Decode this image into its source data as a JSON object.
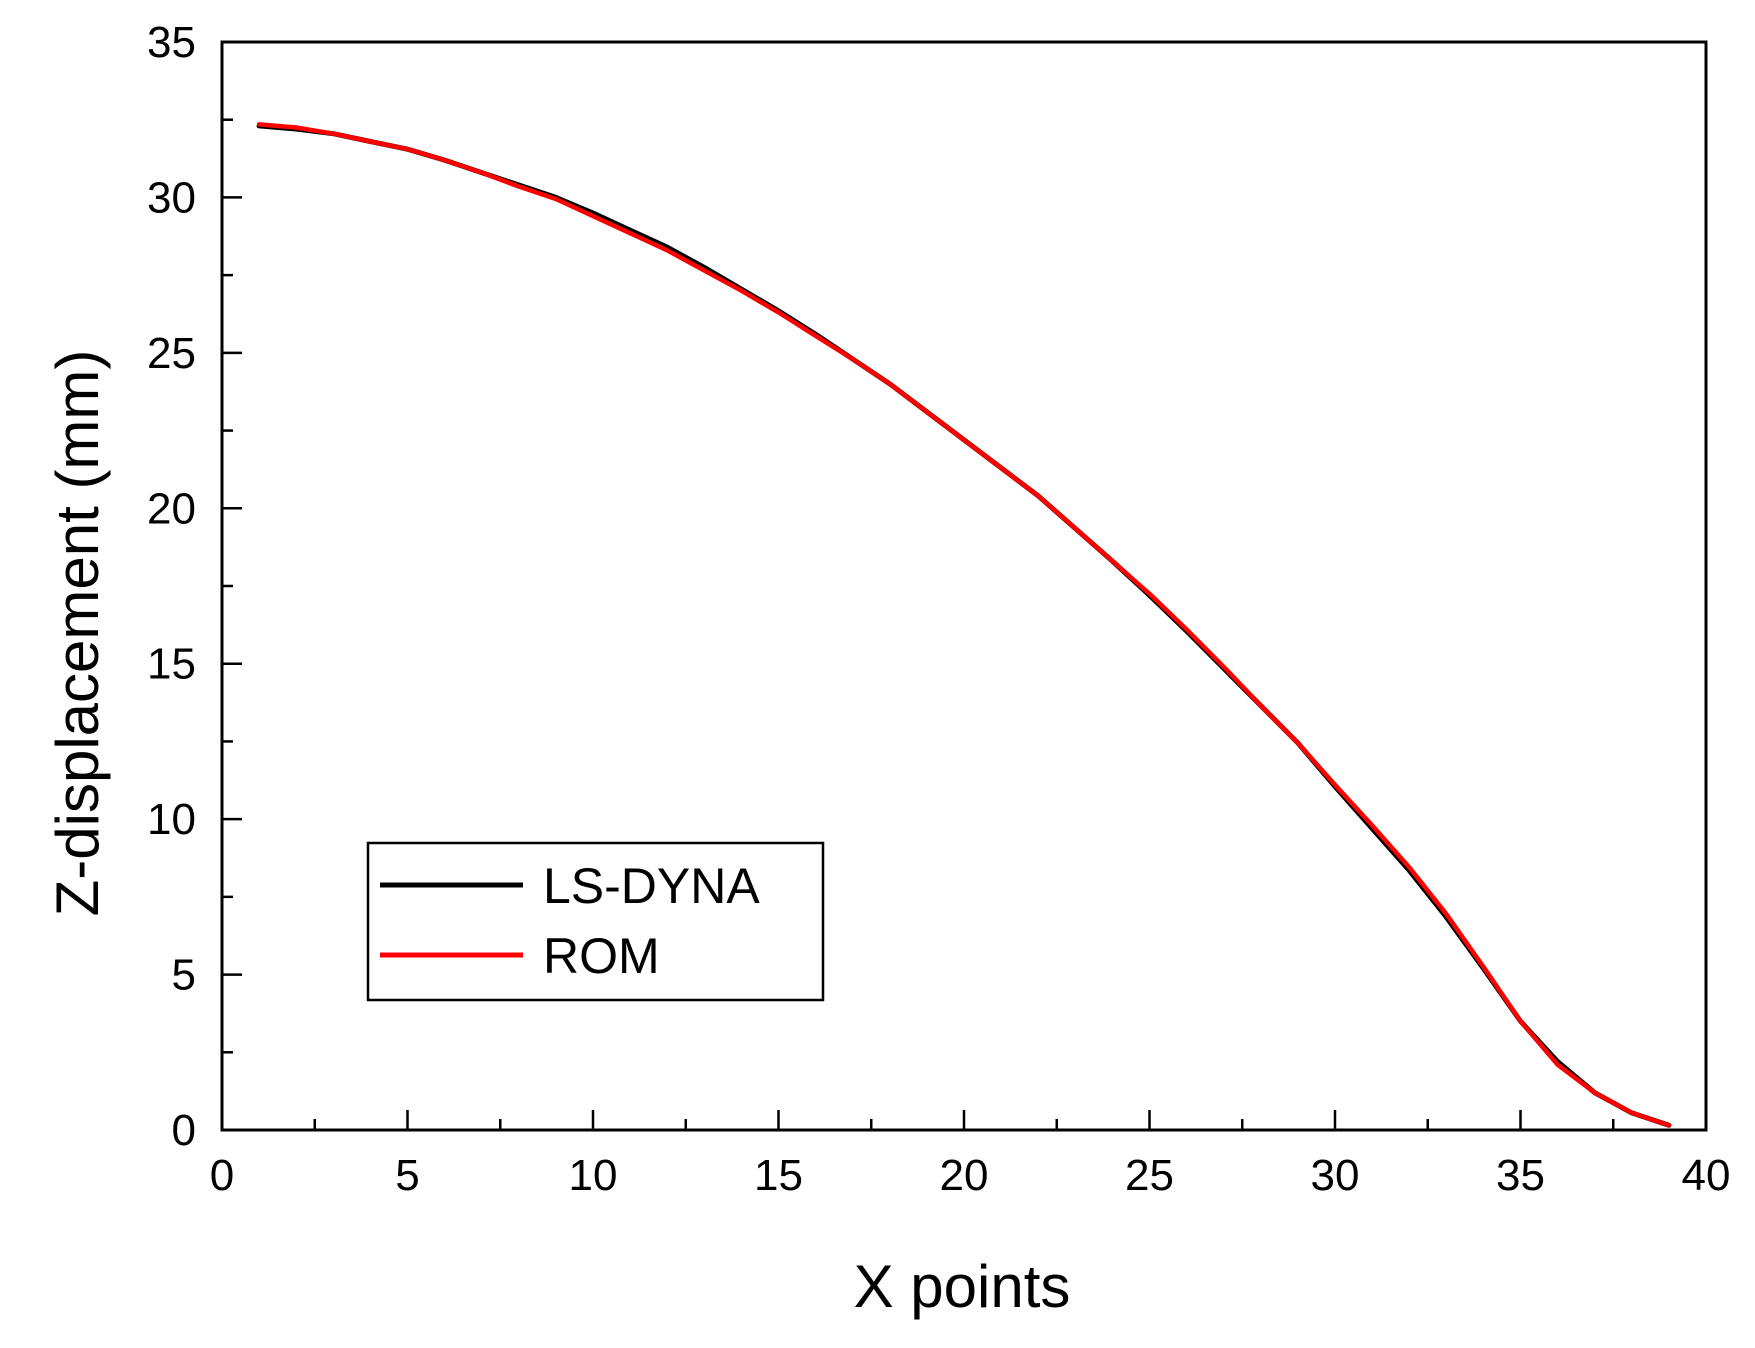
{
  "chart_data": {
    "type": "line",
    "xlabel": "X points",
    "ylabel": "Z-displacement (mm)",
    "xlim": [
      0,
      40
    ],
    "ylim": [
      0,
      35
    ],
    "xticks": [
      0,
      5,
      10,
      15,
      20,
      25,
      30,
      35,
      40
    ],
    "yticks": [
      0,
      5,
      10,
      15,
      20,
      25,
      30,
      35
    ],
    "grid": false,
    "legend_position": "lower-left",
    "series": [
      {
        "name": "LS-DYNA",
        "color": "#000000",
        "x": [
          1,
          2,
          3,
          4,
          5,
          6,
          7,
          8,
          9,
          10,
          11,
          12,
          13,
          14,
          15,
          16,
          17,
          18,
          19,
          20,
          21,
          22,
          23,
          24,
          25,
          26,
          27,
          28,
          29,
          30,
          31,
          32,
          33,
          34,
          35,
          36,
          37,
          38,
          39
        ],
        "y": [
          32.3,
          32.2,
          32.05,
          31.8,
          31.55,
          31.2,
          30.8,
          30.4,
          30.0,
          29.5,
          28.95,
          28.4,
          27.75,
          27.05,
          26.35,
          25.6,
          24.8,
          24.0,
          23.1,
          22.2,
          21.3,
          20.4,
          19.35,
          18.3,
          17.2,
          16.05,
          14.85,
          13.65,
          12.45,
          11.05,
          9.7,
          8.35,
          6.85,
          5.2,
          3.5,
          2.2,
          1.2,
          0.55,
          0.15
        ]
      },
      {
        "name": "ROM",
        "color": "#ff0000",
        "x": [
          1,
          2,
          3,
          4,
          5,
          6,
          7,
          8,
          9,
          10,
          11,
          12,
          13,
          14,
          15,
          16,
          17,
          18,
          19,
          20,
          21,
          22,
          23,
          24,
          25,
          26,
          27,
          28,
          29,
          30,
          31,
          32,
          33,
          34,
          35,
          36,
          37,
          38,
          39
        ],
        "y": [
          32.35,
          32.25,
          32.05,
          31.8,
          31.55,
          31.2,
          30.8,
          30.35,
          29.95,
          29.4,
          28.85,
          28.3,
          27.65,
          27.0,
          26.3,
          25.55,
          24.8,
          24.0,
          23.1,
          22.2,
          21.3,
          20.4,
          19.35,
          18.3,
          17.25,
          16.1,
          14.9,
          13.65,
          12.45,
          11.1,
          9.8,
          8.45,
          6.95,
          5.25,
          3.5,
          2.1,
          1.2,
          0.55,
          0.15
        ]
      }
    ]
  }
}
